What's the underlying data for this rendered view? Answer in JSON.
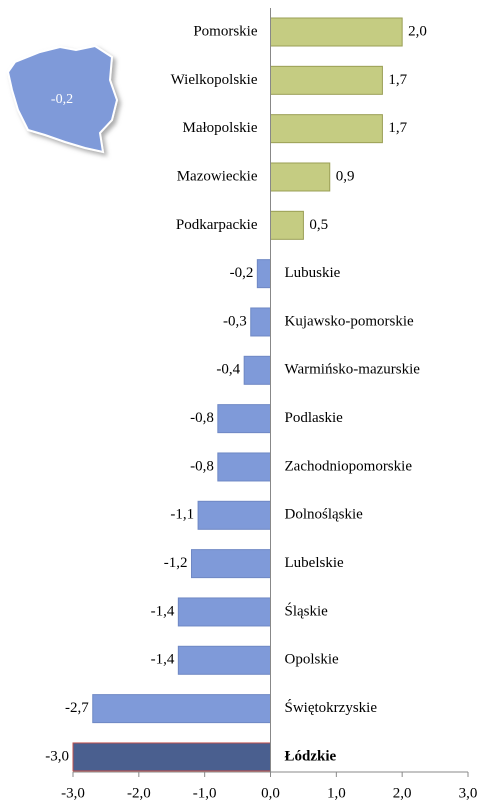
{
  "chart_data": {
    "type": "bar",
    "orientation": "horizontal",
    "categories": [
      "Pomorskie",
      "Wielkopolskie",
      "Małopolskie",
      "Mazowieckie",
      "Podkarpackie",
      "Lubuskie",
      "Kujawsko-pomorskie",
      "Warmińsko-mazurskie",
      "Podlaskie",
      "Zachodniopomorskie",
      "Dolnośląskie",
      "Lubelskie",
      "Śląskie",
      "Opolskie",
      "Świętokrzyskie",
      "Łódzkie"
    ],
    "values": [
      2.0,
      1.7,
      1.7,
      0.9,
      0.5,
      -0.2,
      -0.3,
      -0.4,
      -0.8,
      -0.8,
      -1.1,
      -1.2,
      -1.4,
      -1.4,
      -2.7,
      -3.0
    ],
    "value_labels": [
      "2,0",
      "1,7",
      "1,7",
      "0,9",
      "0,5",
      "-0,2",
      "-0,3",
      "-0,4",
      "-0,8",
      "-0,8",
      "-1,1",
      "-1,2",
      "-1,4",
      "-1,4",
      "-2,7",
      "-3,0"
    ],
    "colors": [
      "#c5cc82",
      "#c5cc82",
      "#c5cc82",
      "#c5cc82",
      "#c5cc82",
      "#7f9ad9",
      "#7f9ad9",
      "#7f9ad9",
      "#7f9ad9",
      "#7f9ad9",
      "#7f9ad9",
      "#7f9ad9",
      "#7f9ad9",
      "#7f9ad9",
      "#7f9ad9",
      "#4a5f8f"
    ],
    "xlim": [
      -3,
      3
    ],
    "xticks": [
      {
        "value": -3,
        "label": "-3,0"
      },
      {
        "value": -2,
        "label": "-2,0"
      },
      {
        "value": -1,
        "label": "-1,0"
      },
      {
        "value": 0,
        "label": "0,0"
      },
      {
        "value": 1,
        "label": "1,0"
      },
      {
        "value": 2,
        "label": "2,0"
      },
      {
        "value": 3,
        "label": "3,0"
      }
    ],
    "annotation": "-0,2"
  }
}
